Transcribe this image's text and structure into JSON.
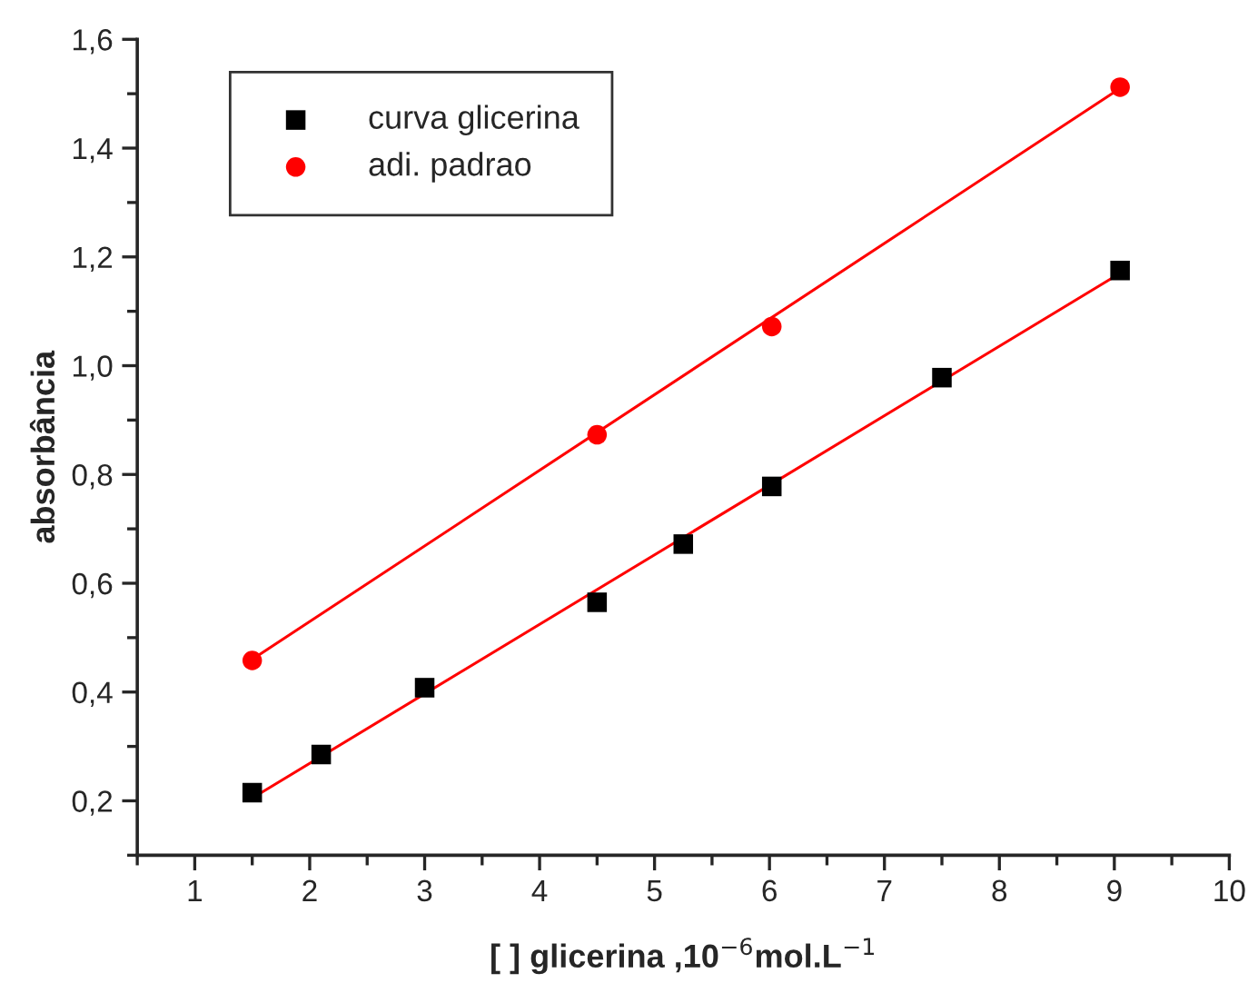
{
  "chart_data": {
    "type": "scatter",
    "xlabel": "[ ] glicerina ,10$^{−6}$mol.L$^{−1}$",
    "ylabel": "absorbância",
    "xlim": [
      0.5,
      10
    ],
    "ylim": [
      0.1,
      1.6
    ],
    "xticks": [
      1,
      2,
      3,
      4,
      5,
      6,
      7,
      8,
      9,
      10
    ],
    "yticks": [
      {
        "value": 0.2,
        "label": "0,2"
      },
      {
        "value": 0.4,
        "label": "0,4"
      },
      {
        "value": 0.6,
        "label": "0,6"
      },
      {
        "value": 0.8,
        "label": "0,8"
      },
      {
        "value": 1.0,
        "label": "1,0"
      },
      {
        "value": 1.2,
        "label": "1,2"
      },
      {
        "value": 1.4,
        "label": "1,4"
      },
      {
        "value": 1.6,
        "label": "1,6"
      }
    ],
    "grid": false,
    "legend": "top left",
    "series": [
      {
        "name": "curva glicerina",
        "marker": "square",
        "color": "#000000",
        "x": [
          1.5,
          2.1,
          3.0,
          4.5,
          5.25,
          6.02,
          7.5,
          9.05
        ],
        "values": [
          0.215,
          0.285,
          0.408,
          0.565,
          0.672,
          0.778,
          0.978,
          1.175
        ]
      },
      {
        "name": "adi. padrao",
        "marker": "circle",
        "color": "#ff0000",
        "x": [
          1.5,
          4.5,
          6.02,
          9.05
        ],
        "values": [
          0.458,
          0.873,
          1.072,
          1.512
        ]
      },
      {
        "type": "line",
        "color": "#ff0000",
        "marker": "none",
        "line_style": "solid",
        "x": [
          1.5,
          9.05
        ],
        "values": [
          0.205,
          1.17
        ]
      },
      {
        "type": "line",
        "color": "#ff0000",
        "marker": "none",
        "line_style": "solid",
        "x": [
          1.5,
          9.05
        ],
        "values": [
          0.46,
          1.51
        ]
      }
    ]
  }
}
